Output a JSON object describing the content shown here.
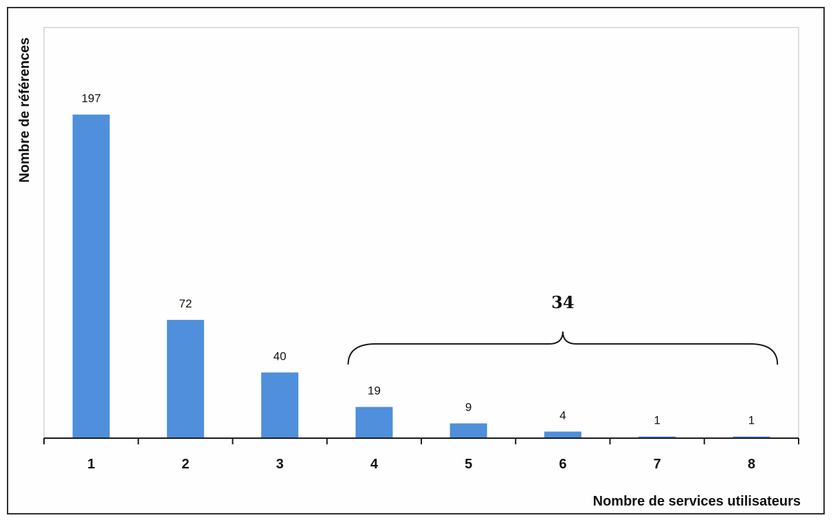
{
  "chart_data": {
    "type": "bar",
    "categories": [
      "1",
      "2",
      "3",
      "4",
      "5",
      "6",
      "7",
      "8"
    ],
    "values": [
      197,
      72,
      40,
      19,
      9,
      4,
      1,
      1
    ],
    "title": "",
    "xlabel": "Nombre de services utilisateurs",
    "ylabel": "Nombre de références",
    "ylim": [
      0,
      250
    ],
    "grid": false,
    "legend": "none",
    "bar_color": "#4f8fdb",
    "annotation": {
      "text": "34",
      "spans_categories": [
        "4",
        "8"
      ]
    }
  }
}
